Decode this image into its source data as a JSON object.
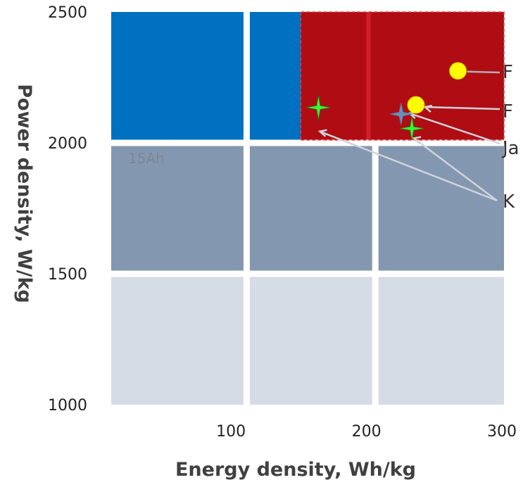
{
  "chart_data": {
    "type": "scatter",
    "xlabel": "Energy density, Wh/kg",
    "ylabel": "Power density, W/kg",
    "xlim": [
      10,
      300
    ],
    "ylim": [
      1000,
      2500
    ],
    "x_ticks": [
      100,
      200,
      300
    ],
    "y_ticks": [
      1000,
      1500,
      2000,
      2500
    ],
    "grid": true,
    "cell_annotation": "15Ah",
    "region_colors": {
      "top": "#0070c0",
      "middle": "#8497b0",
      "bottom": "#d6dce5",
      "target": "#b00c14",
      "grid_line": "#ffffff"
    },
    "target_region": {
      "x": [
        150,
        300
      ],
      "y": [
        2000,
        2500
      ]
    },
    "series": [
      {
        "name": "F",
        "marker": "circle",
        "color": "#ffff00",
        "points": [
          [
            266,
            2275
          ]
        ]
      },
      {
        "name": "F",
        "marker": "circle",
        "color": "#ffff00",
        "points": [
          [
            235,
            2145
          ]
        ]
      },
      {
        "name": "Ja",
        "marker": "star",
        "color": "#6b8fb5",
        "points": [
          [
            224,
            2110
          ]
        ]
      },
      {
        "name": "K",
        "marker": "star",
        "color": "#33ff33",
        "points": [
          [
            163,
            2135
          ],
          [
            232,
            2055
          ]
        ]
      }
    ]
  }
}
